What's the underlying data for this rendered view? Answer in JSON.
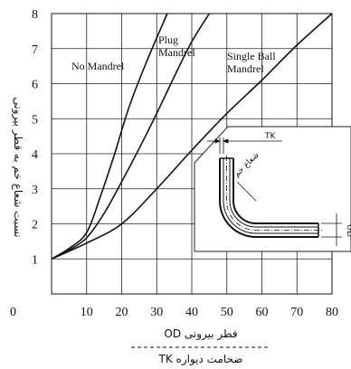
{
  "chart_data": {
    "type": "line",
    "xlim": [
      0,
      80
    ],
    "ylim": [
      0,
      8
    ],
    "x_ticks": [
      "0",
      "10",
      "20",
      "30",
      "40",
      "50",
      "60",
      "70",
      "80"
    ],
    "y_ticks": [
      "1",
      "2",
      "3",
      "4",
      "5",
      "6",
      "7",
      "8"
    ],
    "grid": true,
    "ylabel": "نسبت شعاع خم به قطر بیرونی",
    "xlabel_top": "قطر بیرونی  OD",
    "xlabel_bottom": "ضخامت دیواره  TK",
    "series": [
      {
        "name": "No Mandrel",
        "label_lines": [
          "No Mandrel"
        ],
        "points": [
          [
            0,
            1
          ],
          [
            5,
            1.3
          ],
          [
            10,
            1.75
          ],
          [
            14,
            2.8
          ],
          [
            18,
            4.0
          ],
          [
            22,
            5.3
          ],
          [
            27,
            6.6
          ],
          [
            33,
            8.0
          ]
        ]
      },
      {
        "name": "Plug Mandrel",
        "label_lines": [
          "Plug",
          "Mandrel"
        ],
        "points": [
          [
            0,
            1
          ],
          [
            5,
            1.25
          ],
          [
            10,
            1.6
          ],
          [
            15,
            2.3
          ],
          [
            20,
            3.2
          ],
          [
            25,
            4.15
          ],
          [
            30,
            5.15
          ],
          [
            35,
            6.2
          ],
          [
            40,
            7.2
          ],
          [
            45,
            8.0
          ]
        ]
      },
      {
        "name": "Single Ball Mandrel",
        "label_lines": [
          "Single Ball",
          "Mandrel"
        ],
        "points": [
          [
            0,
            1
          ],
          [
            10,
            1.45
          ],
          [
            20,
            2.0
          ],
          [
            30,
            3.0
          ],
          [
            40,
            4.1
          ],
          [
            50,
            5.15
          ],
          [
            60,
            6.1
          ],
          [
            70,
            7.1
          ],
          [
            80,
            8.0
          ]
        ]
      }
    ],
    "inset": {
      "tk_label": "TK",
      "od_label": "OD",
      "radius_label": "شعاع خم"
    }
  }
}
